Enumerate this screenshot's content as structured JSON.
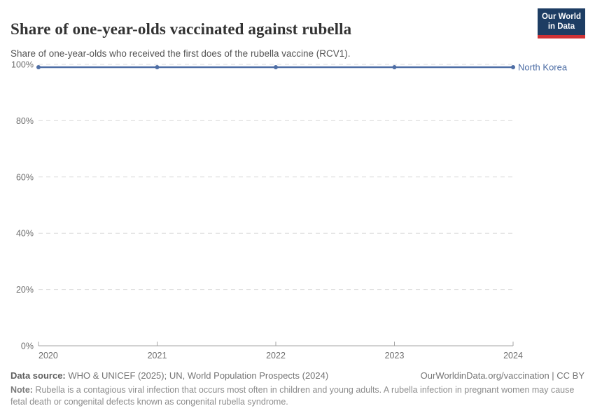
{
  "header": {
    "title": "Share of one-year-olds vaccinated against rubella",
    "subtitle": "Share of one-year-olds who received the first does of the rubella vaccine (RCV1).",
    "logo": {
      "line1": "Our World",
      "line2": "in Data"
    }
  },
  "chart_data": {
    "type": "line",
    "title": "Share of one-year-olds vaccinated against rubella",
    "x": [
      2020,
      2021,
      2022,
      2023,
      2024
    ],
    "xtick_labels": [
      "2020",
      "2021",
      "2022",
      "2023",
      "2024"
    ],
    "series": [
      {
        "name": "North Korea",
        "values": [
          99,
          99,
          99,
          99,
          99
        ]
      }
    ],
    "ylim": [
      0,
      100
    ],
    "yticks": [
      0,
      20,
      40,
      60,
      80,
      100
    ],
    "ytick_labels": [
      "0%",
      "20%",
      "40%",
      "60%",
      "80%",
      "100%"
    ],
    "xlabel": "",
    "ylabel": "",
    "grid": "horizontal-dashed",
    "legend_position": "end-of-line"
  },
  "colors": {
    "series_line": "#4e6ea5",
    "grid": "#dcdcdc",
    "axis": "#a5a5a5",
    "axis_text": "#6e6e6e",
    "logo_bg": "#1d3d63",
    "logo_accent": "#cf3235"
  },
  "footer": {
    "source_label": "Data source:",
    "source_text": " WHO & UNICEF (2025); UN, World Population Prospects (2024)",
    "rights": "OurWorldinData.org/vaccination | CC BY",
    "note_label": "Note:",
    "note_text": " Rubella is a contagious viral infection that occurs most often in children and young adults. A rubella infection in pregnant women may cause fetal death or congenital defects known as congenital rubella syndrome."
  }
}
